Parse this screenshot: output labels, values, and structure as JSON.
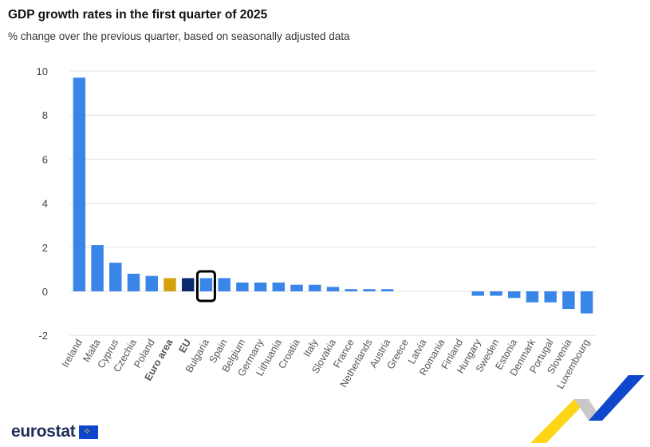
{
  "chart_data": {
    "type": "bar",
    "title": "GDP growth rates in the first quarter of 2025",
    "subtitle": "% change over the previous quarter, based on seasonally adjusted data",
    "categories": [
      "Ireland",
      "Malta",
      "Cyprus",
      "Czechia",
      "Poland",
      "Euro area",
      "EU",
      "Bulgaria",
      "Spain",
      "Belgium",
      "Germany",
      "Lithuania",
      "Croatia",
      "Italy",
      "Slovakia",
      "France",
      "Netherlands",
      "Austria",
      "Greece",
      "Latvia",
      "Romania",
      "Finland",
      "Hungary",
      "Sweden",
      "Estonia",
      "Denmark",
      "Portugal",
      "Slovenia",
      "Luxembourg"
    ],
    "values": [
      9.7,
      2.1,
      1.3,
      0.8,
      0.7,
      0.6,
      0.6,
      0.6,
      0.6,
      0.4,
      0.4,
      0.4,
      0.3,
      0.3,
      0.2,
      0.1,
      0.1,
      0.1,
      0.0,
      0.0,
      0.0,
      0.0,
      -0.2,
      -0.2,
      -0.3,
      -0.5,
      -0.5,
      -0.8,
      -1.0
    ],
    "bold_categories": [
      "Euro area",
      "EU"
    ],
    "highlighted_category": "Bulgaria",
    "yticks": [
      10,
      8,
      6,
      4,
      2,
      0,
      -2
    ],
    "ylim": [
      -2,
      10
    ],
    "xlabel": "",
    "ylabel": "",
    "grid": true,
    "colors": {
      "default": "#3a86e8",
      "Euro area": "#d4a20f",
      "EU": "#0d2a6e",
      "gridline": "#e3e3e3",
      "highlight_outline": "#000000"
    }
  },
  "branding": {
    "logo_text": "eurostat",
    "logo_flag_colors": [
      "#0e47cb",
      "#ffd617"
    ],
    "swoosh_colors": [
      "#ffd617",
      "#0e47cb",
      "#c8c8c8"
    ]
  }
}
